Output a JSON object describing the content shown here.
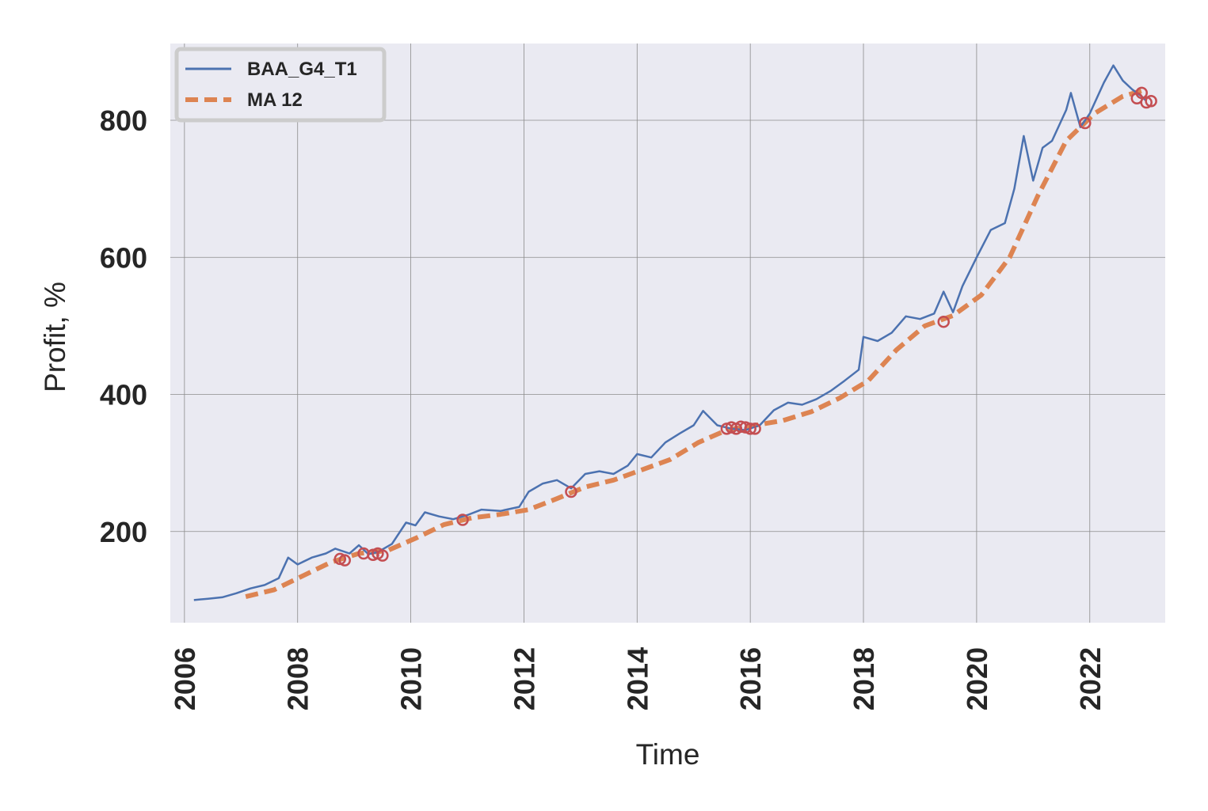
{
  "chart_data": {
    "type": "line",
    "title": "",
    "xlabel": "Time",
    "ylabel": "Profit, %",
    "xlim": [
      "2005-10-01",
      "2023-05-01"
    ],
    "ylim": [
      67,
      912
    ],
    "x_ticks": [
      "2006",
      "2008",
      "2010",
      "2012",
      "2014",
      "2016",
      "2018",
      "2020",
      "2022"
    ],
    "y_ticks": [
      200,
      400,
      600,
      800
    ],
    "grid": true,
    "legend_position": "top-left",
    "colors": {
      "series": "#4c72b0",
      "ma": "#dd8452",
      "marker": "#c44e52",
      "plot_bg": "#eaeaf2",
      "grid": "#8c8c8c"
    },
    "series": [
      {
        "name": "BAA_G4_T1",
        "style": "solid",
        "points": [
          [
            "2006-03",
            100
          ],
          [
            "2006-06",
            102
          ],
          [
            "2006-09",
            104
          ],
          [
            "2006-12",
            110
          ],
          [
            "2007-03",
            117
          ],
          [
            "2007-06",
            122
          ],
          [
            "2007-09",
            132
          ],
          [
            "2007-11",
            162
          ],
          [
            "2008-01",
            152
          ],
          [
            "2008-04",
            162
          ],
          [
            "2008-07",
            168
          ],
          [
            "2008-09",
            175
          ],
          [
            "2008-12",
            168
          ],
          [
            "2009-02",
            180
          ],
          [
            "2009-04",
            167
          ],
          [
            "2009-06",
            170
          ],
          [
            "2009-09",
            182
          ],
          [
            "2009-12",
            213
          ],
          [
            "2010-02",
            209
          ],
          [
            "2010-04",
            228
          ],
          [
            "2010-07",
            222
          ],
          [
            "2010-10",
            218
          ],
          [
            "2011-01",
            224
          ],
          [
            "2011-04",
            232
          ],
          [
            "2011-08",
            230
          ],
          [
            "2011-12",
            236
          ],
          [
            "2012-02",
            258
          ],
          [
            "2012-05",
            270
          ],
          [
            "2012-08",
            275
          ],
          [
            "2012-11",
            263
          ],
          [
            "2013-02",
            284
          ],
          [
            "2013-05",
            288
          ],
          [
            "2013-08",
            284
          ],
          [
            "2013-11",
            296
          ],
          [
            "2014-01",
            313
          ],
          [
            "2014-04",
            308
          ],
          [
            "2014-07",
            330
          ],
          [
            "2014-10",
            343
          ],
          [
            "2015-01",
            355
          ],
          [
            "2015-03",
            376
          ],
          [
            "2015-06",
            355
          ],
          [
            "2015-09",
            350
          ],
          [
            "2015-12",
            348
          ],
          [
            "2016-03",
            355
          ],
          [
            "2016-06",
            377
          ],
          [
            "2016-09",
            388
          ],
          [
            "2016-12",
            385
          ],
          [
            "2017-03",
            393
          ],
          [
            "2017-06",
            405
          ],
          [
            "2017-09",
            420
          ],
          [
            "2017-12",
            436
          ],
          [
            "2018-01",
            484
          ],
          [
            "2018-04",
            478
          ],
          [
            "2018-07",
            490
          ],
          [
            "2018-10",
            514
          ],
          [
            "2019-01",
            510
          ],
          [
            "2019-04",
            518
          ],
          [
            "2019-06",
            550
          ],
          [
            "2019-08",
            520
          ],
          [
            "2019-10",
            558
          ],
          [
            "2020-01",
            600
          ],
          [
            "2020-04",
            640
          ],
          [
            "2020-07",
            650
          ],
          [
            "2020-09",
            700
          ],
          [
            "2020-11",
            777
          ],
          [
            "2021-01",
            712
          ],
          [
            "2021-03",
            760
          ],
          [
            "2021-05",
            770
          ],
          [
            "2021-08",
            815
          ],
          [
            "2021-09",
            840
          ],
          [
            "2021-11",
            790
          ],
          [
            "2022-01",
            810
          ],
          [
            "2022-04",
            855
          ],
          [
            "2022-06",
            880
          ],
          [
            "2022-08",
            858
          ],
          [
            "2022-10",
            845
          ],
          [
            "2022-12",
            835
          ],
          [
            "2023-01",
            828
          ]
        ]
      },
      {
        "name": "MA 12",
        "style": "dashed",
        "points": [
          [
            "2007-02",
            105
          ],
          [
            "2007-08",
            115
          ],
          [
            "2008-02",
            135
          ],
          [
            "2008-08",
            155
          ],
          [
            "2009-02",
            168
          ],
          [
            "2009-08",
            172
          ],
          [
            "2010-02",
            190
          ],
          [
            "2010-08",
            210
          ],
          [
            "2011-02",
            220
          ],
          [
            "2011-08",
            225
          ],
          [
            "2012-02",
            232
          ],
          [
            "2012-08",
            248
          ],
          [
            "2013-02",
            265
          ],
          [
            "2013-08",
            275
          ],
          [
            "2014-02",
            290
          ],
          [
            "2014-08",
            305
          ],
          [
            "2015-02",
            330
          ],
          [
            "2015-08",
            348
          ],
          [
            "2016-02",
            355
          ],
          [
            "2016-08",
            362
          ],
          [
            "2017-02",
            375
          ],
          [
            "2017-08",
            395
          ],
          [
            "2018-02",
            420
          ],
          [
            "2018-08",
            465
          ],
          [
            "2019-02",
            500
          ],
          [
            "2019-08",
            515
          ],
          [
            "2020-02",
            545
          ],
          [
            "2020-08",
            600
          ],
          [
            "2021-02",
            690
          ],
          [
            "2021-08",
            770
          ],
          [
            "2022-02",
            810
          ],
          [
            "2022-08",
            835
          ],
          [
            "2023-01",
            845
          ]
        ]
      }
    ],
    "markers": [
      [
        "2008-10",
        160
      ],
      [
        "2008-11",
        158
      ],
      [
        "2009-03",
        168
      ],
      [
        "2009-05",
        166
      ],
      [
        "2009-06",
        168
      ],
      [
        "2009-07",
        165
      ],
      [
        "2010-12",
        217
      ],
      [
        "2012-11",
        258
      ],
      [
        "2015-08",
        350
      ],
      [
        "2015-09",
        352
      ],
      [
        "2015-10",
        350
      ],
      [
        "2015-11",
        353
      ],
      [
        "2015-12",
        352
      ],
      [
        "2016-01",
        350
      ],
      [
        "2016-02",
        350
      ],
      [
        "2019-06",
        506
      ],
      [
        "2021-12",
        796
      ],
      [
        "2022-11",
        832
      ],
      [
        "2022-12",
        840
      ],
      [
        "2023-01",
        826
      ],
      [
        "2023-02",
        828
      ]
    ]
  }
}
